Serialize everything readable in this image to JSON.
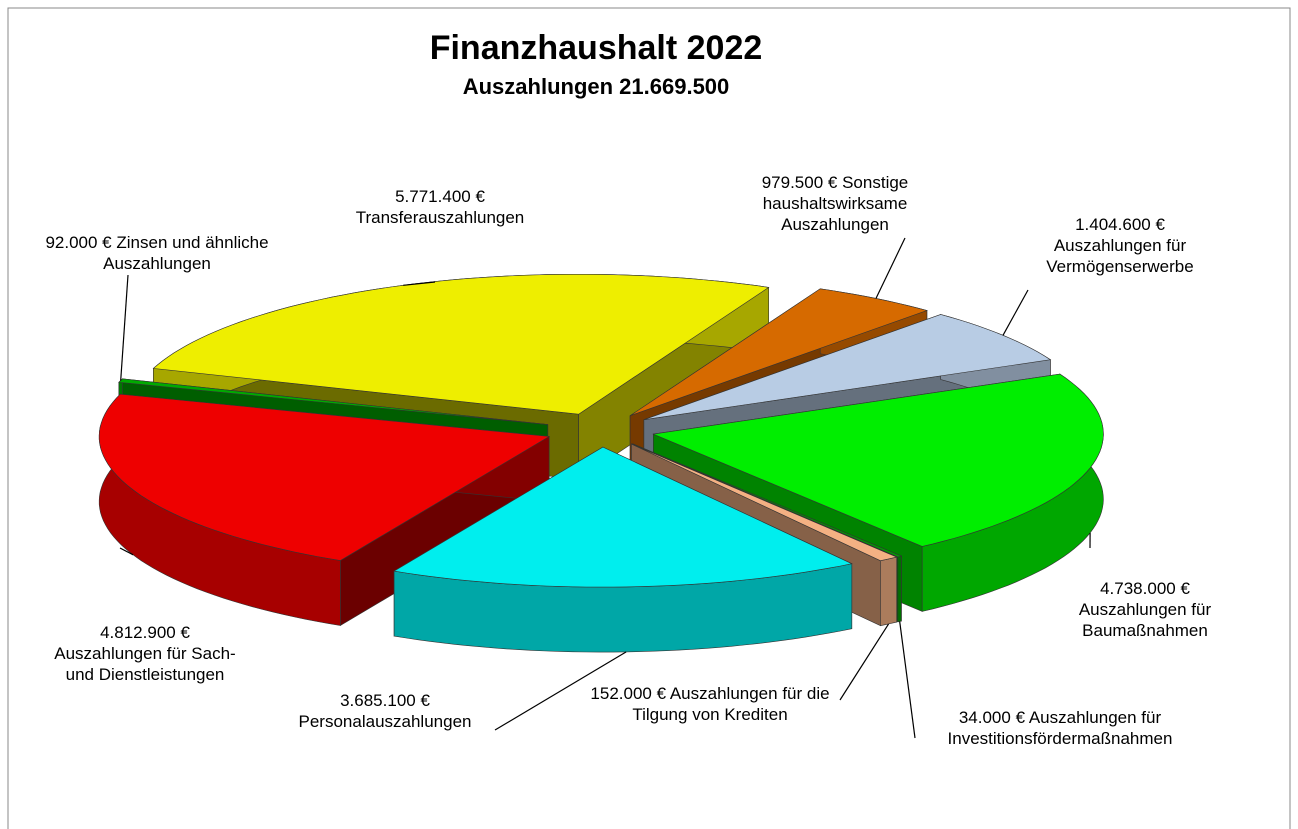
{
  "chart_data": {
    "type": "pie3d",
    "title": "Finanzhaushalt 2022",
    "subtitle": "Auszahlungen 21.669.500",
    "categories": [
      "Sonstige haushaltswirksame Auszahlungen",
      "Auszahlungen für Vermögenserwerbe",
      "Auszahlungen für Baumaßnahmen",
      "Auszahlungen für Investitionsfördermaßnahmen",
      "Auszahlungen für die Tilgung von Krediten",
      "Personalauszahlungen",
      "Auszahlungen für Sach- und Dienstleistungen",
      "Zinsen und ähnliche Auszahlungen",
      "Transferauszahlungen"
    ],
    "values": [
      979500,
      1404600,
      4738000,
      34000,
      152000,
      3685100,
      4812900,
      92000,
      5771400
    ],
    "value_labels": [
      "979.500 €",
      "1.404.600 €",
      "4.738.000 €",
      "34.000 €",
      "152.000 €",
      "3.685.100 €",
      "4.812.900 €",
      "92.000 €",
      "5.771.400 €"
    ],
    "colors": [
      "#d66a00",
      "#b8cce4",
      "#00ee00",
      "#00a000",
      "#f4b183",
      "#00eeee",
      "#ee0000",
      "#00aa00",
      "#eeee00"
    ]
  }
}
